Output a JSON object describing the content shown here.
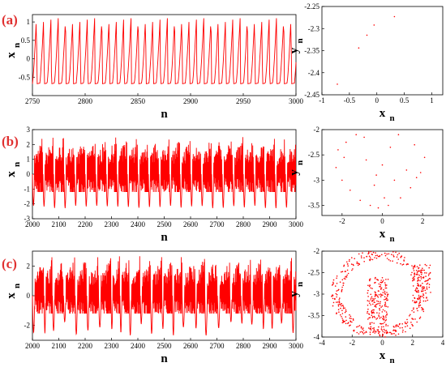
{
  "colors": {
    "series": "#ff0000",
    "panel_label": "#e03030",
    "axis": "#000000"
  },
  "panels": [
    {
      "label": "(a)"
    },
    {
      "label": "(b)"
    },
    {
      "label": "(c)"
    }
  ],
  "chart_data": [
    {
      "type": "line",
      "panel": "(a)",
      "title": "",
      "xlabel": "n",
      "ylabel": "x",
      "ylabel_sub": "n",
      "xlim": [
        2750,
        3000
      ],
      "ylim": [
        -1.0,
        1.2
      ],
      "xticks": [
        "2750",
        "2800",
        "2850",
        "2900",
        "2950",
        "3000"
      ],
      "yticks": [
        "-0.5",
        "0",
        "0.5",
        "1"
      ],
      "series": [
        {
          "period": 6.9,
          "min": -0.68,
          "max": 1.12,
          "style": "periodic"
        }
      ],
      "grid": false
    },
    {
      "type": "scatter",
      "panel": "(a)",
      "title": "",
      "xlabel": "x",
      "xlabel_sub": "n",
      "ylabel": "y",
      "ylabel_sub": "n",
      "xlim": [
        -1,
        1.2
      ],
      "ylim": [
        -2.45,
        -2.25
      ],
      "xticks": [
        "-1",
        "-0.5",
        "0",
        "0.5",
        "1"
      ],
      "yticks": [
        "-2.25",
        "-2.3",
        "-2.35",
        "-2.4",
        "-2.45"
      ],
      "points": [
        [
          0.32,
          -2.273
        ],
        [
          -0.05,
          -2.292
        ],
        [
          -0.33,
          -2.344
        ],
        [
          -0.72,
          -2.426
        ],
        [
          -0.18,
          -2.315
        ]
      ],
      "grid": false
    },
    {
      "type": "line",
      "panel": "(b)",
      "title": "",
      "xlabel": "n",
      "ylabel": "x",
      "ylabel_sub": "n",
      "xlim": [
        2000,
        3000
      ],
      "ylim": [
        -3,
        3
      ],
      "xticks": [
        "2000",
        "2100",
        "2200",
        "2300",
        "2400",
        "2500",
        "2600",
        "2700",
        "2800",
        "2900",
        "3000"
      ],
      "yticks": [
        "-3",
        "-2",
        "-1",
        "0",
        "1",
        "2",
        "3"
      ],
      "series": [
        {
          "period": 40,
          "min": -2.3,
          "max": 2.5,
          "style": "bursting"
        }
      ],
      "grid": false
    },
    {
      "type": "scatter",
      "panel": "(b)",
      "title": "",
      "xlabel": "x",
      "xlabel_sub": "n",
      "ylabel": "y",
      "ylabel_sub": "n",
      "xlim": [
        -3,
        3
      ],
      "ylim": [
        -3.7,
        -2
      ],
      "xticks": [
        "-2",
        "0",
        "2"
      ],
      "yticks": [
        "-2",
        "-2.5",
        "-3",
        "-3.5"
      ],
      "points": [
        [
          -2.2,
          -2.4
        ],
        [
          -1.8,
          -2.25
        ],
        [
          -1.3,
          -2.1
        ],
        [
          -0.9,
          -2.15
        ],
        [
          0.8,
          -2.1
        ],
        [
          1.6,
          -2.3
        ],
        [
          2.1,
          -2.55
        ],
        [
          -2.3,
          -2.75
        ],
        [
          -2.0,
          -3.0
        ],
        [
          -1.6,
          -3.2
        ],
        [
          -1.1,
          -3.4
        ],
        [
          -0.6,
          -3.5
        ],
        [
          -0.2,
          -3.55
        ],
        [
          0.3,
          -3.5
        ],
        [
          0.9,
          -3.35
        ],
        [
          1.4,
          -3.15
        ],
        [
          1.9,
          -2.85
        ],
        [
          -0.4,
          -3.1
        ],
        [
          0.1,
          -3.35
        ],
        [
          0.6,
          -3.0
        ],
        [
          -0.8,
          -2.6
        ],
        [
          0.4,
          -2.35
        ],
        [
          1.2,
          -2.8
        ],
        [
          -1.9,
          -2.55
        ],
        [
          0.0,
          -2.7
        ],
        [
          1.7,
          -2.95
        ],
        [
          -0.3,
          -2.9
        ]
      ],
      "grid": false
    },
    {
      "type": "line",
      "panel": "(c)",
      "title": "",
      "xlabel": "n",
      "ylabel": "x",
      "ylabel_sub": "n",
      "xlim": [
        2000,
        3000
      ],
      "ylim": [
        -3,
        3
      ],
      "xticks": [
        "2000",
        "2100",
        "2200",
        "2300",
        "2400",
        "2500",
        "2600",
        "2700",
        "2800",
        "2900",
        "3000"
      ],
      "yticks": [
        "-2",
        "0",
        "2"
      ],
      "series": [
        {
          "period": 40,
          "min": -2.8,
          "max": 2.6,
          "style": "chaotic"
        }
      ],
      "grid": false
    },
    {
      "type": "scatter",
      "panel": "(c)",
      "title": "",
      "xlabel": "x",
      "xlabel_sub": "n",
      "ylabel": "y",
      "ylabel_sub": "n",
      "xlim": [
        -4,
        4
      ],
      "ylim": [
        -4,
        -2
      ],
      "xticks": [
        "-4",
        "-2",
        "0",
        "2",
        "4"
      ],
      "yticks": [
        "-2",
        "-2.5",
        "-3",
        "-3.5",
        "-4"
      ],
      "points_style": "dense-cloud",
      "grid": false
    }
  ]
}
